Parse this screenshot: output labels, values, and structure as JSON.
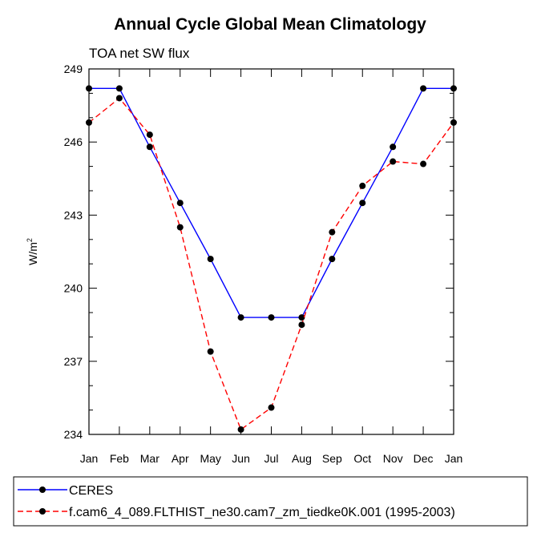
{
  "chart_data": {
    "type": "line",
    "title": "Annual Cycle Global Mean Climatology",
    "subtitle": "TOA net SW flux",
    "ylabel_base": "W/m",
    "ylabel_sup": "2",
    "xlabel": "",
    "categories": [
      "Jan",
      "Feb",
      "Mar",
      "Apr",
      "May",
      "Jun",
      "Jul",
      "Aug",
      "Sep",
      "Oct",
      "Nov",
      "Dec",
      "Jan"
    ],
    "ylim": [
      234,
      249
    ],
    "yticks": [
      234,
      237,
      240,
      243,
      246,
      249
    ],
    "yticks_minor": [
      235,
      236,
      238,
      239,
      241,
      242,
      244,
      245,
      247,
      248
    ],
    "grid": false,
    "legend_position": "bottom",
    "series": [
      {
        "name": "CERES",
        "color": "#0000ff",
        "dash": "solid",
        "marker": "filled-circle",
        "values": [
          248.2,
          248.2,
          245.8,
          243.5,
          241.2,
          238.8,
          238.8,
          238.8,
          241.2,
          243.5,
          245.8,
          248.2,
          248.2
        ]
      },
      {
        "name": "f.cam6_4_089.FLTHIST_ne30.cam7_zm_tiedke0K.001 (1995-2003)",
        "color": "#ff0000",
        "dash": "dashed",
        "marker": "filled-circle",
        "values": [
          246.8,
          247.8,
          246.3,
          242.5,
          237.4,
          234.2,
          235.1,
          238.5,
          242.3,
          244.2,
          245.2,
          245.1,
          246.8
        ]
      }
    ]
  }
}
